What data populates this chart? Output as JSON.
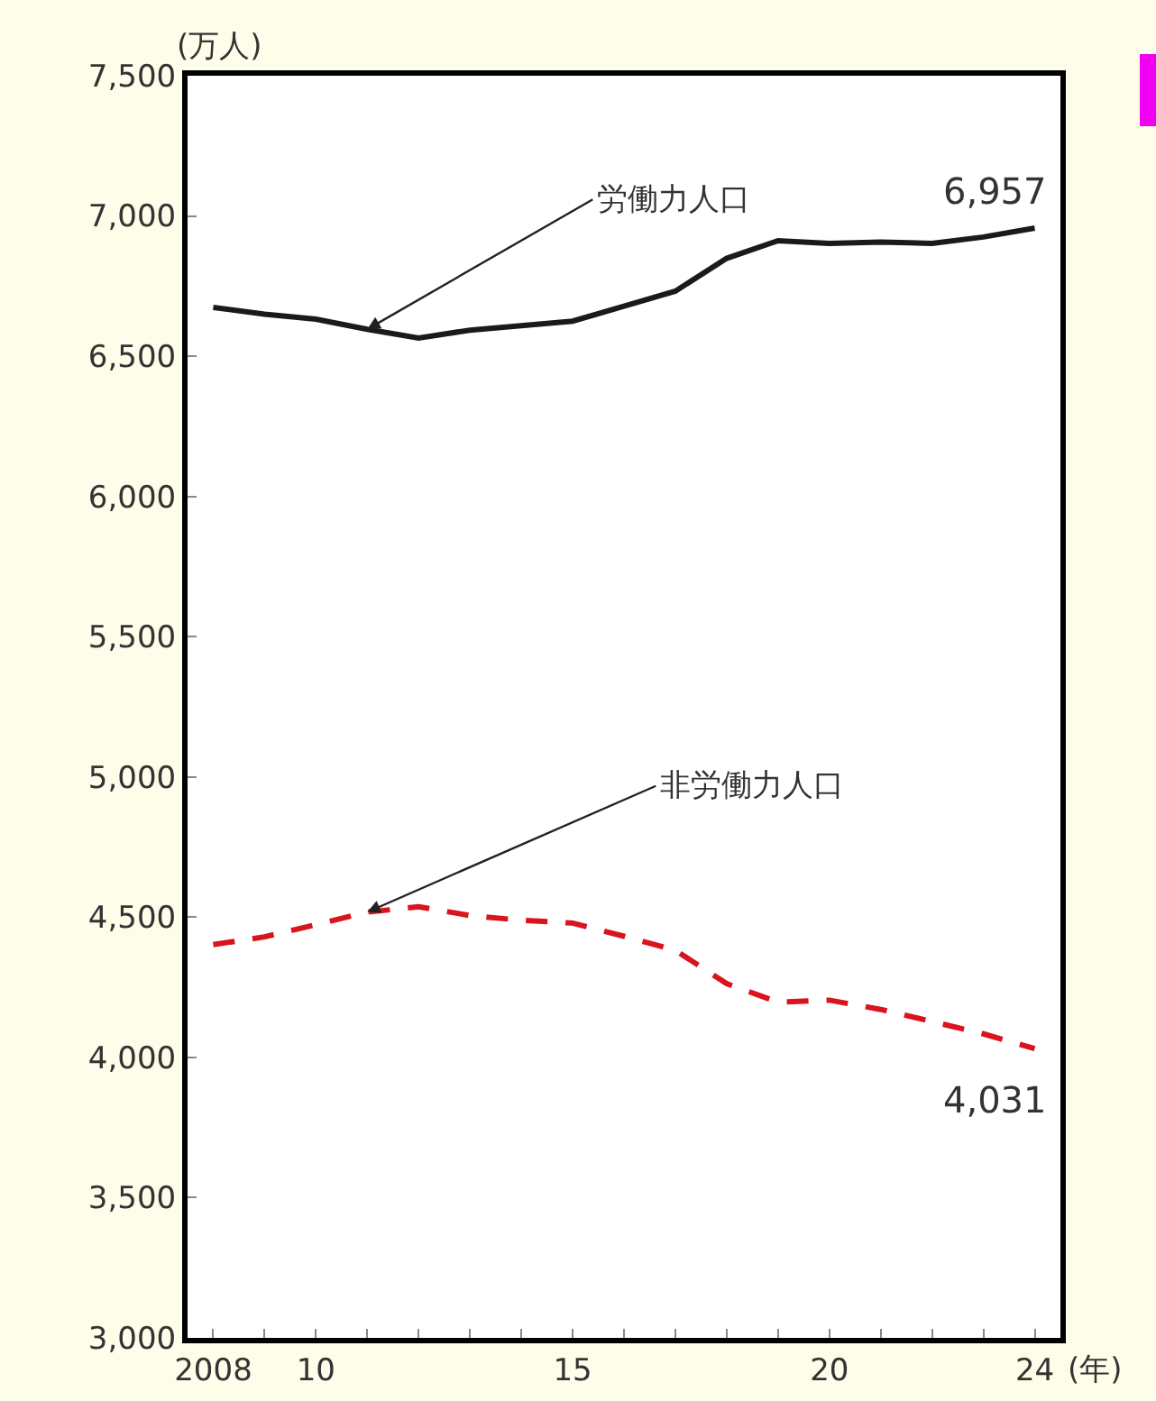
{
  "chart_data": {
    "type": "line",
    "ylabel": "(万人)",
    "xlabel": "(年)",
    "x": [
      2008,
      2009,
      2010,
      2011,
      2012,
      2013,
      2014,
      2015,
      2016,
      2017,
      2018,
      2019,
      2020,
      2021,
      2022,
      2023,
      2024
    ],
    "series": [
      {
        "color": "#1a1a1a",
        "line_style": "solid",
        "values": [
          6674,
          6650,
          6632,
          6596,
          6565,
          6593,
          6609,
          6625,
          6678,
          6732,
          6849,
          6912,
          6902,
          6907,
          6902,
          6925,
          6957
        ],
        "value_labels": [
          null,
          null,
          null,
          null,
          null,
          null,
          null,
          null,
          null,
          null,
          null,
          null,
          null,
          null,
          null,
          null,
          "6,957"
        ]
      },
      {
        "color": "#d9141e",
        "line_style": "dashed",
        "values": [
          4402,
          4430,
          4473,
          4518,
          4537,
          4506,
          4489,
          4479,
          4432,
          4382,
          4263,
          4197,
          4204,
          4171,
          4128,
          4084,
          4031
        ],
        "value_labels": [
          null,
          null,
          null,
          null,
          null,
          null,
          null,
          null,
          null,
          null,
          null,
          null,
          null,
          null,
          null,
          null,
          "4,031"
        ]
      }
    ],
    "annotations": [
      {
        "text": "労働力人口",
        "x": 2011,
        "y": 6596
      },
      {
        "text": "非労働力人口",
        "x": 2011,
        "y": 4518
      }
    ],
    "xlim": [
      2007.5,
      2024.5
    ],
    "xticks": [
      {
        "value": 2008,
        "label": "2008"
      },
      {
        "value": 2009,
        "label": null
      },
      {
        "value": 2010,
        "label": "10"
      },
      {
        "value": 2011,
        "label": null
      },
      {
        "value": 2012,
        "label": null
      },
      {
        "value": 2013,
        "label": null
      },
      {
        "value": 2014,
        "label": null
      },
      {
        "value": 2015,
        "label": "15"
      },
      {
        "value": 2016,
        "label": null
      },
      {
        "value": 2017,
        "label": null
      },
      {
        "value": 2018,
        "label": null
      },
      {
        "value": 2019,
        "label": null
      },
      {
        "value": 2020,
        "label": "20"
      },
      {
        "value": 2021,
        "label": null
      },
      {
        "value": 2022,
        "label": null
      },
      {
        "value": 2023,
        "label": null
      },
      {
        "value": 2024,
        "label": "24"
      }
    ],
    "ylim": [
      3000,
      7500
    ],
    "yticks": [
      {
        "value": 3000,
        "label": "3,000"
      },
      {
        "value": 3500,
        "label": "3,500"
      },
      {
        "value": 4000,
        "label": "4,000"
      },
      {
        "value": 4500,
        "label": "4,500"
      },
      {
        "value": 5000,
        "label": "5,000"
      },
      {
        "value": 5500,
        "label": "5,500"
      },
      {
        "value": 6000,
        "label": "6,000"
      },
      {
        "value": 6500,
        "label": "6,500"
      },
      {
        "value": 7000,
        "label": "7,000"
      },
      {
        "value": 7500,
        "label": "7,500"
      }
    ],
    "marker": "none"
  }
}
